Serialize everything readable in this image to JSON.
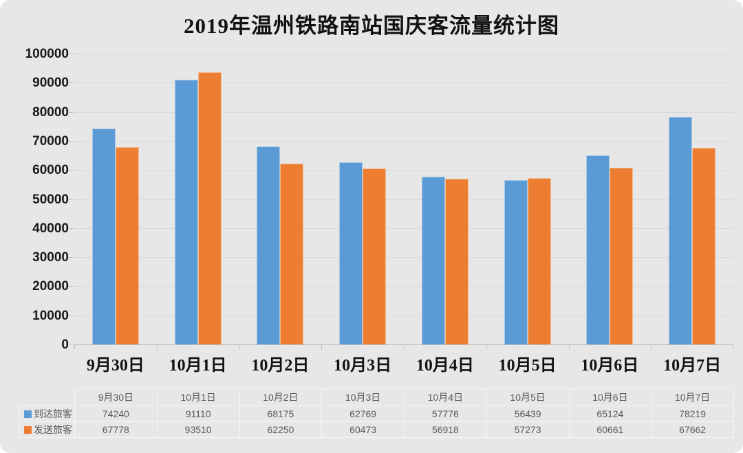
{
  "title": "2019年温州铁路南站国庆客流量统计图",
  "colors": {
    "series_arrive": "#5b9bd5",
    "series_depart": "#ed7d31",
    "background": "#e7e7e7",
    "gridline": "#d9d9d9",
    "axis": "#bdbdbd",
    "table_text": "#595959"
  },
  "chart_data": {
    "type": "bar",
    "title": "2019年温州铁路南站国庆客流量统计图",
    "categories": [
      "9月30日",
      "10月1日",
      "10月2日",
      "10月3日",
      "10月4日",
      "10月5日",
      "10月6日",
      "10月7日"
    ],
    "series": [
      {
        "name": "到达旅客",
        "color": "#5b9bd5",
        "values": [
          74240,
          91110,
          68175,
          62769,
          57776,
          56439,
          65124,
          78219
        ]
      },
      {
        "name": "发送旅客",
        "color": "#ed7d31",
        "values": [
          67778,
          93510,
          62250,
          60473,
          56918,
          57273,
          60661,
          67662
        ]
      }
    ],
    "xlabel": "",
    "ylabel": "",
    "ylim": [
      0,
      100000
    ],
    "ytick_step": 10000,
    "grid": true,
    "legend_position": "data-table-left"
  }
}
